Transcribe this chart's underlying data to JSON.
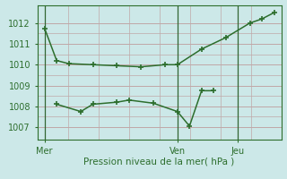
{
  "line1_x": [
    0,
    0.5,
    1.0,
    2.0,
    3.0,
    4.0,
    5.0,
    5.5,
    6.5,
    7.5,
    8.5,
    9.0,
    9.5
  ],
  "line1_y": [
    1011.75,
    1010.2,
    1010.05,
    1010.0,
    1009.95,
    1009.9,
    1010.0,
    1010.0,
    1010.75,
    1011.3,
    1012.0,
    1012.2,
    1012.5
  ],
  "line2_x": [
    0.5,
    1.5,
    2.0,
    3.0,
    3.5,
    4.5,
    5.5,
    6.0,
    6.5,
    7.0
  ],
  "line2_y": [
    1008.1,
    1007.75,
    1008.1,
    1008.2,
    1008.3,
    1008.15,
    1007.75,
    1007.05,
    1008.75,
    1008.75
  ],
  "color": "#2d6e2d",
  "bg_color": "#cce8e8",
  "grid_color_h": "#c0a8a8",
  "grid_color_v": "#336633",
  "xlabel": "Pression niveau de la mer( hPa )",
  "yticks": [
    1007,
    1008,
    1009,
    1010,
    1011,
    1012
  ],
  "xtick_positions": [
    0.0,
    5.5,
    8.0
  ],
  "xtick_labels": [
    "Mer",
    "Ven",
    "Jeu"
  ],
  "vline_positions": [
    0.0,
    5.5,
    8.0
  ],
  "ylim": [
    1006.4,
    1012.85
  ],
  "xlim": [
    -0.3,
    9.8
  ]
}
